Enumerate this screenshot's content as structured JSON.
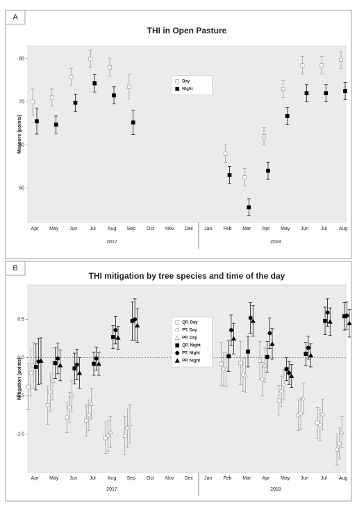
{
  "chart_data": [
    {
      "type": "scatter-errorbar",
      "panel_label": "A",
      "title": "THI in Open Pasture",
      "y_label": "Measure (points)",
      "category_groups": [
        {
          "name": "2017",
          "categories": [
            "Apr",
            "May",
            "Jun",
            "Jul",
            "Aug",
            "Sep",
            "Oct",
            "Nov",
            "Dec"
          ]
        },
        {
          "name": "2018",
          "categories": [
            "Jan",
            "Feb",
            "Mar",
            "Apr",
            "May",
            "Jun",
            "Jul",
            "Aug"
          ]
        }
      ],
      "ylim": [
        42,
        83
      ],
      "yticks": [
        50,
        60,
        70,
        80
      ],
      "legend": "upper center",
      "background": "#ebebeb",
      "series": [
        {
          "name": "Day",
          "marker": "square",
          "color": "#9a9a9a",
          "fill": "#ffffff",
          "values": [
            70,
            71,
            75.8,
            80,
            78,
            73.5,
            null,
            null,
            null,
            null,
            58,
            52.5,
            62,
            73,
            78.5,
            78.5,
            79.8
          ],
          "errors": [
            3,
            2,
            2,
            2,
            2,
            2.8,
            null,
            null,
            null,
            null,
            2,
            2,
            2,
            2,
            2,
            2,
            2
          ]
        },
        {
          "name": "Night",
          "marker": "square",
          "color": "#000000",
          "fill": "#000000",
          "values": [
            65.5,
            64.7,
            69.8,
            74.3,
            71.5,
            65.2,
            null,
            null,
            null,
            null,
            53,
            45.5,
            54,
            66.7,
            72,
            72,
            72.5
          ],
          "errors": [
            3,
            2,
            2,
            2,
            2,
            2.8,
            null,
            null,
            null,
            null,
            2,
            2,
            2,
            2,
            2,
            2,
            2
          ]
        }
      ]
    },
    {
      "type": "scatter-errorbar",
      "panel_label": "B",
      "title": "THI mitigation by tree species and time of the day",
      "y_label": "Mitigation (points)",
      "category_groups": [
        {
          "name": "2017",
          "categories": [
            "Apr",
            "May",
            "Jun",
            "Jul",
            "Aug",
            "Sep",
            "Oct",
            "Nov",
            "Dec"
          ]
        },
        {
          "name": "2018",
          "categories": [
            "Jan",
            "Feb",
            "Mar",
            "Apr",
            "May",
            "Jun",
            "Jul",
            "Aug"
          ]
        }
      ],
      "ylim": [
        -1.5,
        0.95
      ],
      "yticks": [
        {
          "value": -1,
          "label": "-1.0"
        },
        {
          "value": -0.5,
          "label": "-0.5"
        },
        {
          "value": 0,
          "label": "0.0"
        },
        0.5
      ],
      "hline": 0,
      "legend": "upper center",
      "background": "#ebebeb",
      "series": [
        {
          "name": "QP, Day",
          "marker": "square",
          "color": "#9a9a9a",
          "fill": "#ffffff",
          "values": [
            -0.38,
            -0.62,
            -0.78,
            -0.82,
            -1.05,
            -1.02,
            null,
            null,
            null,
            null,
            -0.08,
            -0.07,
            -0.04,
            -0.56,
            -0.75,
            -0.85,
            -1.2
          ],
          "errors": [
            0.3,
            0.25,
            0.2,
            0.2,
            0.2,
            0.25,
            null,
            null,
            null,
            null,
            0.28,
            0.28,
            0.25,
            0.2,
            0.2,
            0.2,
            0.2
          ]
        },
        {
          "name": "PT, Day",
          "marker": "circle",
          "color": "#9a9a9a",
          "fill": "#ffffff",
          "values": [
            -0.2,
            -0.45,
            -0.65,
            -0.75,
            -1.02,
            -0.92,
            null,
            null,
            null,
            null,
            -0.15,
            -0.22,
            -0.28,
            -0.44,
            -0.73,
            -0.88,
            -1.12
          ],
          "errors": [
            0.3,
            0.25,
            0.2,
            0.2,
            0.2,
            0.25,
            null,
            null,
            null,
            null,
            0.22,
            0.22,
            0.22,
            0.2,
            0.2,
            0.2,
            0.2
          ]
        },
        {
          "name": "PP, Day",
          "marker": "triangle",
          "color": "#9a9a9a",
          "fill": "#ffffff",
          "values": [
            -0.1,
            -0.3,
            -0.5,
            -0.6,
            -0.97,
            -0.86,
            null,
            null,
            null,
            null,
            -0.15,
            -0.23,
            -0.1,
            -0.35,
            -0.53,
            -0.74,
            -0.97
          ],
          "errors": [
            0.3,
            0.25,
            0.2,
            0.2,
            0.2,
            0.25,
            null,
            null,
            null,
            null,
            0.22,
            0.22,
            0.22,
            0.2,
            0.2,
            0.2,
            0.2
          ]
        },
        {
          "name": "QP, Night",
          "marker": "square",
          "color": "#000000",
          "fill": "#000000",
          "values": [
            -0.12,
            -0.07,
            -0.14,
            -0.08,
            0.27,
            0.48,
            null,
            null,
            null,
            null,
            0.02,
            0.08,
            0.01,
            -0.15,
            0.05,
            0.48,
            0.54
          ],
          "errors": [
            0.3,
            0.2,
            0.2,
            0.15,
            0.15,
            0.25,
            null,
            null,
            null,
            null,
            0.2,
            0.2,
            0.2,
            0.15,
            0.15,
            0.18,
            0.18
          ]
        },
        {
          "name": "PT, Night",
          "marker": "circle",
          "color": "#000000",
          "fill": "#000000",
          "values": [
            -0.05,
            -0.01,
            -0.09,
            -0.01,
            0.36,
            0.5,
            null,
            null,
            null,
            null,
            0.36,
            0.52,
            0.32,
            -0.2,
            0.13,
            0.59,
            0.55
          ],
          "errors": [
            0.3,
            0.2,
            0.2,
            0.15,
            0.18,
            0.27,
            null,
            null,
            null,
            null,
            0.2,
            0.2,
            0.2,
            0.15,
            0.15,
            0.18,
            0.18
          ]
        },
        {
          "name": "PP, Night",
          "marker": "triangle",
          "color": "#000000",
          "fill": "#000000",
          "values": [
            -0.04,
            -0.1,
            -0.2,
            -0.08,
            0.26,
            0.42,
            null,
            null,
            null,
            null,
            0.25,
            0.48,
            0.18,
            -0.24,
            0.03,
            0.47,
            0.45
          ],
          "errors": [
            0.3,
            0.2,
            0.2,
            0.15,
            0.15,
            0.22,
            null,
            null,
            null,
            null,
            0.2,
            0.2,
            0.2,
            0.15,
            0.15,
            0.18,
            0.18
          ]
        }
      ]
    }
  ]
}
